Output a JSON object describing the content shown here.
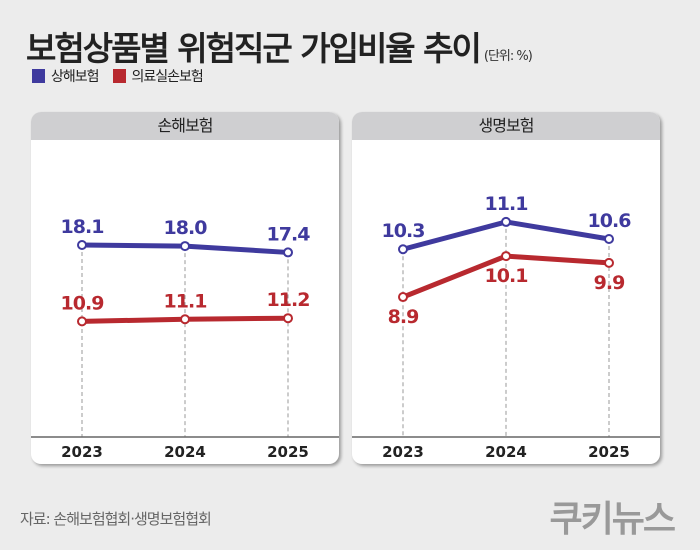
{
  "header": {
    "title": "보험상품별 위험직군 가입비율 추이",
    "unit": "(단위: %)"
  },
  "legend": [
    {
      "label": "상해보험",
      "color": "#3f3a9e"
    },
    {
      "label": "의료실손보험",
      "color": "#b8292f"
    }
  ],
  "footer": {
    "source": "자료: 손해보험협회·생명보험협회",
    "logo": "쿠키뉴스"
  },
  "chart_data": [
    {
      "type": "line",
      "title": "손해보험",
      "categories": [
        "2023",
        "2024",
        "2025"
      ],
      "series": [
        {
          "name": "상해보험",
          "color": "#3f3a9e",
          "values": [
            18.1,
            18.0,
            17.4
          ],
          "labels": [
            "18.1",
            "18.0",
            "17.4"
          ]
        },
        {
          "name": "의료실손보험",
          "color": "#b8292f",
          "values": [
            10.9,
            11.1,
            11.2
          ],
          "labels": [
            "10.9",
            "11.1",
            "11.2"
          ]
        }
      ],
      "ylim": [
        0,
        28
      ],
      "grid": "vertical dashed",
      "xlabel": "",
      "ylabel": ""
    },
    {
      "type": "line",
      "title": "생명보험",
      "categories": [
        "2023",
        "2024",
        "2025"
      ],
      "series": [
        {
          "name": "상해보험",
          "color": "#3f3a9e",
          "values": [
            10.3,
            11.1,
            10.6
          ],
          "labels": [
            "10.3",
            "11.1",
            "10.6"
          ]
        },
        {
          "name": "의료실손보험",
          "color": "#b8292f",
          "values": [
            8.9,
            10.1,
            9.9
          ],
          "labels": [
            "8.9",
            "10.1",
            "9.9"
          ]
        }
      ],
      "ylim": [
        4.8,
        13.5
      ],
      "grid": "vertical dashed",
      "xlabel": "",
      "ylabel": ""
    }
  ]
}
